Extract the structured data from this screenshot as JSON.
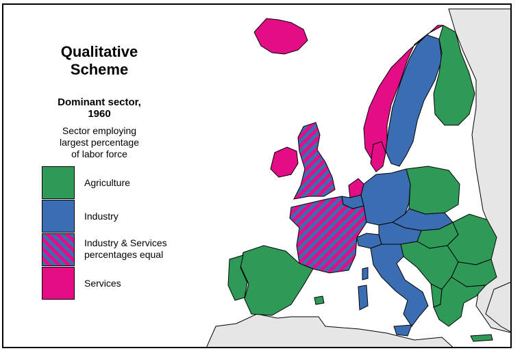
{
  "title": [
    "Qualitative",
    "Scheme"
  ],
  "subtitle": [
    "Dominant sector,",
    "1960"
  ],
  "description": [
    "Sector employing",
    "largest percentage",
    "of labor force"
  ],
  "legend": [
    {
      "label_lines": [
        "Agriculture"
      ],
      "color": "#2f9a57",
      "pattern": "solid"
    },
    {
      "label_lines": [
        "Industry"
      ],
      "color": "#3b6db3",
      "pattern": "solid"
    },
    {
      "label_lines": [
        "Industry & Services",
        "percentages equal"
      ],
      "color": "#3b6db3",
      "color2": "#e40d86",
      "pattern": "diagonal-stripes"
    },
    {
      "label_lines": [
        "Services"
      ],
      "color": "#e40d86",
      "pattern": "solid"
    }
  ],
  "colors": {
    "agriculture": "#2f9a57",
    "industry": "#3b6db3",
    "services": "#e40d86",
    "non_european_land": "#e6e6e6",
    "sea": "#ffffff",
    "border": "#000000"
  },
  "regions": [
    {
      "name": "Iceland",
      "sector": "services"
    },
    {
      "name": "Norway",
      "sector": "services"
    },
    {
      "name": "Sweden",
      "sector": "industry"
    },
    {
      "name": "Finland",
      "sector": "agriculture"
    },
    {
      "name": "Denmark",
      "sector": "services"
    },
    {
      "name": "Ireland",
      "sector": "services"
    },
    {
      "name": "United Kingdom",
      "sector": "industry-services-equal"
    },
    {
      "name": "Netherlands",
      "sector": "services"
    },
    {
      "name": "Belgium",
      "sector": "industry"
    },
    {
      "name": "France",
      "sector": "industry-services-equal"
    },
    {
      "name": "Germany",
      "sector": "industry"
    },
    {
      "name": "Poland",
      "sector": "agriculture"
    },
    {
      "name": "Czechoslovakia",
      "sector": "industry"
    },
    {
      "name": "Switzerland",
      "sector": "industry"
    },
    {
      "name": "Austria",
      "sector": "industry"
    },
    {
      "name": "Hungary",
      "sector": "agriculture"
    },
    {
      "name": "Romania",
      "sector": "agriculture"
    },
    {
      "name": "Yugoslavia",
      "sector": "agriculture"
    },
    {
      "name": "Bulgaria",
      "sector": "agriculture"
    },
    {
      "name": "Albania",
      "sector": "agriculture"
    },
    {
      "name": "Greece",
      "sector": "agriculture"
    },
    {
      "name": "Italy",
      "sector": "industry"
    },
    {
      "name": "Spain",
      "sector": "agriculture"
    },
    {
      "name": "Portugal",
      "sector": "agriculture"
    }
  ]
}
